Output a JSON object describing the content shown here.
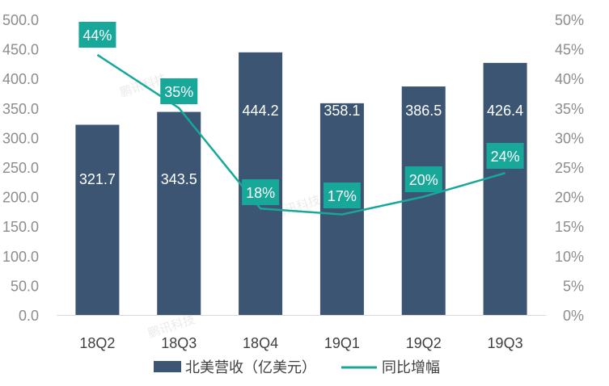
{
  "chart_data": {
    "type": "bar",
    "categories": [
      "18Q2",
      "18Q3",
      "18Q4",
      "19Q1",
      "19Q2",
      "19Q3"
    ],
    "series": [
      {
        "name": "北美营收（亿美元）",
        "type": "bar",
        "axis": "left",
        "values": [
          321.7,
          343.5,
          444.2,
          358.1,
          386.5,
          426.4
        ],
        "labels": [
          "321.7",
          "343.5",
          "444.2",
          "358.1",
          "386.5",
          "426.4"
        ]
      },
      {
        "name": "同比增幅",
        "type": "line",
        "axis": "right",
        "values": [
          44,
          35,
          18,
          17,
          20,
          24
        ],
        "labels": [
          "44%",
          "35%",
          "18%",
          "17%",
          "20%",
          "24%"
        ]
      }
    ],
    "y_left": {
      "ylim": [
        0,
        500
      ],
      "ticks": [
        "0.0",
        "50.0",
        "100.0",
        "150.0",
        "200.0",
        "250.0",
        "300.0",
        "350.0",
        "400.0",
        "450.0",
        "500.0"
      ]
    },
    "y_right": {
      "ylim": [
        0,
        50
      ],
      "ticks": [
        "0%",
        "5%",
        "10%",
        "15%",
        "20%",
        "25%",
        "30%",
        "35%",
        "40%",
        "45%",
        "50%"
      ]
    },
    "grid": false,
    "legend_position": "bottom"
  },
  "colors": {
    "bar": "#3b5573",
    "line": "#17a89a",
    "label_box": "#17a89a",
    "axis_text": "#8c8c8c",
    "category_text": "#404040"
  },
  "watermark": "鹏讯科技"
}
